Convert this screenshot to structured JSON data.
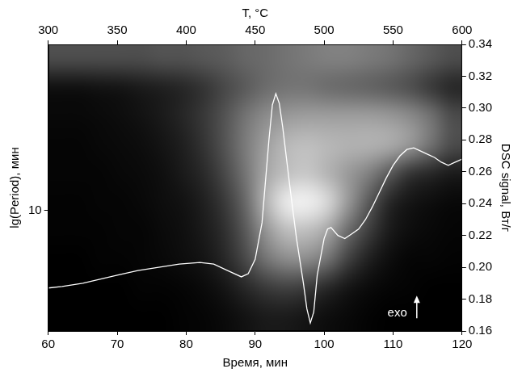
{
  "chart_data": {
    "type": "line",
    "x_label": "Время, мин",
    "y_label": "lg(Period), мин",
    "y2_label": "DSC signal, Вт/г",
    "x2_label": "T, °C",
    "xlim": [
      60,
      120
    ],
    "xticks": [
      60,
      70,
      80,
      90,
      100,
      110,
      120
    ],
    "x2lim": [
      300,
      600
    ],
    "x2ticks": [
      300,
      350,
      400,
      450,
      500,
      550,
      600
    ],
    "ylim": [
      3.8,
      38
    ],
    "yticks": [
      10
    ],
    "log": "y",
    "y2lim": [
      0.16,
      0.34
    ],
    "y2ticks": [
      0.16,
      0.18,
      {
        "value": 0.2,
        "label": "0.20"
      },
      0.22,
      0.24,
      0.26,
      0.28,
      {
        "value": 0.3,
        "label": "0.30"
      },
      0.32,
      0.34
    ],
    "grid": false,
    "x": [
      60,
      62,
      65,
      68,
      70,
      73,
      76,
      79,
      82,
      84,
      86,
      88,
      89,
      90,
      91,
      92,
      92.5,
      93,
      93.5,
      94,
      95,
      96,
      97,
      97.5,
      98,
      98.5,
      99,
      100,
      100.5,
      101,
      102,
      103,
      104,
      105,
      106,
      107,
      108,
      109,
      110,
      111,
      112,
      113,
      114,
      115,
      116,
      117,
      118,
      119,
      120
    ],
    "series": [
      {
        "color": "#ffffff",
        "axis": "y2",
        "values": [
          0.187,
          0.188,
          0.19,
          0.193,
          0.195,
          0.198,
          0.2,
          0.202,
          0.203,
          0.202,
          0.198,
          0.194,
          0.196,
          0.205,
          0.228,
          0.28,
          0.302,
          0.309,
          0.303,
          0.288,
          0.252,
          0.218,
          0.19,
          0.174,
          0.165,
          0.172,
          0.195,
          0.218,
          0.224,
          0.225,
          0.22,
          0.218,
          0.221,
          0.224,
          0.23,
          0.238,
          0.247,
          0.256,
          0.264,
          0.27,
          0.274,
          0.275,
          0.273,
          0.271,
          0.269,
          0.266,
          0.264,
          0.266,
          0.268
        ]
      }
    ],
    "heatmap": {
      "x_edges": [
        60,
        63,
        66,
        69,
        72,
        75,
        78,
        81,
        84,
        87,
        90,
        93,
        96,
        99,
        102,
        105,
        108,
        111,
        114,
        117,
        120
      ],
      "y_edges": [
        3.8,
        4.784,
        6.023,
        7.582,
        9.545,
        12.016,
        15.128,
        19.045,
        23.976,
        30.184,
        38
      ],
      "zlim": [
        0,
        1
      ],
      "cells": [
        [
          0,
          0,
          0,
          0,
          0,
          0,
          0.01,
          0.02,
          0.04,
          0.07,
          0.1,
          0.1,
          0.08,
          0.05,
          0.03,
          0.01,
          0,
          0,
          0,
          0
        ],
        [
          0,
          0,
          0,
          0,
          0.01,
          0.01,
          0.02,
          0.04,
          0.08,
          0.15,
          0.22,
          0.25,
          0.22,
          0.15,
          0.08,
          0.04,
          0.02,
          0.01,
          0,
          0
        ],
        [
          0,
          0,
          0.01,
          0.01,
          0.02,
          0.03,
          0.05,
          0.08,
          0.15,
          0.28,
          0.45,
          0.55,
          0.55,
          0.45,
          0.25,
          0.12,
          0.05,
          0.02,
          0.02,
          0.01
        ],
        [
          0.01,
          0.01,
          0.01,
          0.02,
          0.02,
          0.04,
          0.06,
          0.1,
          0.18,
          0.34,
          0.58,
          0.74,
          0.75,
          0.65,
          0.42,
          0.24,
          0.1,
          0.05,
          0.03,
          0.02
        ],
        [
          0.01,
          0.01,
          0.02,
          0.02,
          0.03,
          0.05,
          0.07,
          0.12,
          0.22,
          0.4,
          0.7,
          0.92,
          0.95,
          0.85,
          0.6,
          0.35,
          0.15,
          0.08,
          0.05,
          0.03
        ],
        [
          0.02,
          0.02,
          0.02,
          0.03,
          0.04,
          0.06,
          0.1,
          0.16,
          0.28,
          0.45,
          0.65,
          0.75,
          0.78,
          0.7,
          0.6,
          0.5,
          0.35,
          0.2,
          0.15,
          0.1
        ],
        [
          0.02,
          0.02,
          0.03,
          0.04,
          0.05,
          0.08,
          0.12,
          0.2,
          0.32,
          0.48,
          0.62,
          0.72,
          0.75,
          0.72,
          0.7,
          0.7,
          0.68,
          0.6,
          0.45,
          0.3
        ],
        [
          0.03,
          0.03,
          0.04,
          0.05,
          0.07,
          0.1,
          0.15,
          0.22,
          0.32,
          0.45,
          0.55,
          0.6,
          0.62,
          0.62,
          0.62,
          0.62,
          0.6,
          0.55,
          0.45,
          0.3
        ],
        [
          0.06,
          0.06,
          0.07,
          0.08,
          0.1,
          0.12,
          0.15,
          0.2,
          0.28,
          0.35,
          0.42,
          0.45,
          0.45,
          0.42,
          0.4,
          0.38,
          0.35,
          0.3,
          0.22,
          0.15
        ],
        [
          0.3,
          0.3,
          0.3,
          0.3,
          0.3,
          0.32,
          0.32,
          0.34,
          0.36,
          0.4,
          0.42,
          0.45,
          0.48,
          0.5,
          0.5,
          0.48,
          0.45,
          0.4,
          0.35,
          0.3
        ]
      ]
    },
    "annotations": [
      {
        "text": "exo"
      }
    ]
  }
}
